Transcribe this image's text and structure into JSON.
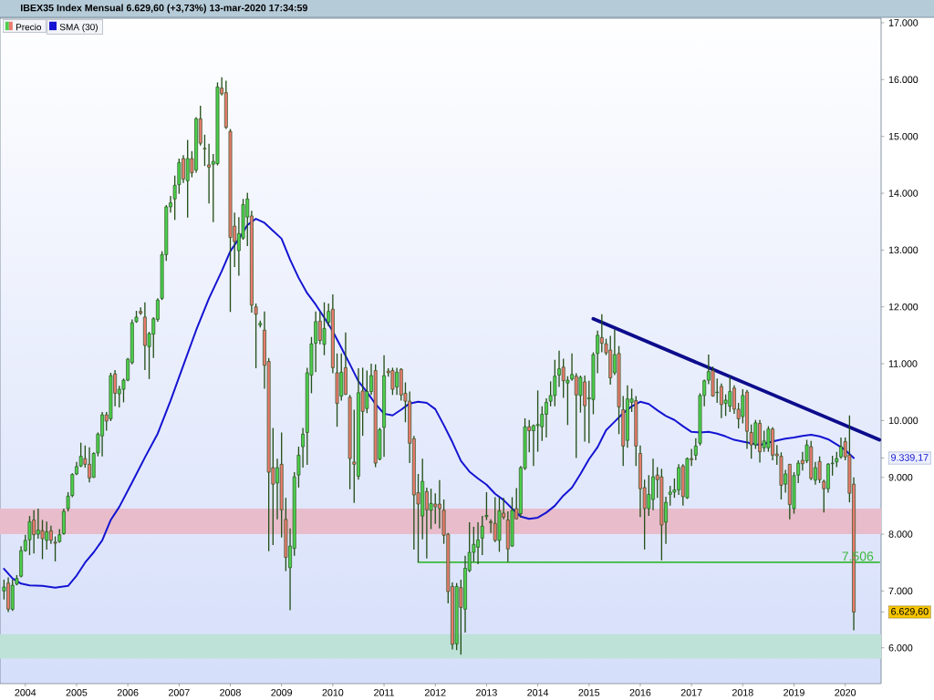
{
  "chart_data": {
    "type": "candlestick",
    "title": "IBEX35 Index Mensual 6.629,60 (+3,73%) 13-mar-2020 17:34:59",
    "xlim": [
      "2003-07-03",
      "2020-09-13"
    ],
    "ylim": [
      5370,
      17080
    ],
    "xticks": [
      "2004",
      "2005",
      "2006",
      "2007",
      "2008",
      "2009",
      "2010",
      "2011",
      "2012",
      "2013",
      "2014",
      "2015",
      "2016",
      "2017",
      "2018",
      "2019",
      "2020"
    ],
    "yticks": [
      {
        "value": 6000,
        "label": "6.000"
      },
      {
        "value": 6629.6,
        "label": "6.629,60"
      },
      {
        "value": 7000,
        "label": "7.000"
      },
      {
        "value": 8000,
        "label": "8.000"
      },
      {
        "value": 9000,
        "label": "9.000"
      },
      {
        "value": 9339.17,
        "label": "9.339,17"
      },
      {
        "value": 10000,
        "label": "10.000"
      },
      {
        "value": 11000,
        "label": "11.000"
      },
      {
        "value": 12000,
        "label": "12.000"
      },
      {
        "value": 13000,
        "label": "13.000"
      },
      {
        "value": 14000,
        "label": "14.000"
      },
      {
        "value": 15000,
        "label": "15.000"
      },
      {
        "value": 16000,
        "label": "16.000"
      },
      {
        "value": 17000,
        "label": "17.000"
      }
    ],
    "legend": "top left",
    "series": [
      {
        "name": "Precio",
        "x": [
          "2003-08",
          "2003-09",
          "2003-10",
          "2003-11",
          "2003-12",
          "2004-01",
          "2004-02",
          "2004-03",
          "2004-04",
          "2004-05",
          "2004-06",
          "2004-07",
          "2004-08",
          "2004-09",
          "2004-10",
          "2004-11",
          "2004-12",
          "2005-01",
          "2005-02",
          "2005-03",
          "2005-04",
          "2005-05",
          "2005-06",
          "2005-07",
          "2005-08",
          "2005-09",
          "2005-10",
          "2005-11",
          "2005-12",
          "2006-01",
          "2006-02",
          "2006-03",
          "2006-04",
          "2006-05",
          "2006-06",
          "2006-07",
          "2006-08",
          "2006-09",
          "2006-10",
          "2006-11",
          "2006-12",
          "2007-01",
          "2007-02",
          "2007-03",
          "2007-04",
          "2007-05",
          "2007-06",
          "2007-07",
          "2007-08",
          "2007-09",
          "2007-10",
          "2007-11",
          "2007-12",
          "2008-01",
          "2008-02",
          "2008-03",
          "2008-04",
          "2008-05",
          "2008-06",
          "2008-07",
          "2008-08",
          "2008-09",
          "2008-10",
          "2008-11",
          "2008-12",
          "2009-01",
          "2009-02",
          "2009-03",
          "2009-04",
          "2009-05",
          "2009-06",
          "2009-07",
          "2009-08",
          "2009-09",
          "2009-10",
          "2009-11",
          "2009-12",
          "2010-01",
          "2010-02",
          "2010-03",
          "2010-04",
          "2010-05",
          "2010-06",
          "2010-07",
          "2010-08",
          "2010-09",
          "2010-10",
          "2010-11",
          "2010-12",
          "2011-01",
          "2011-02",
          "2011-03",
          "2011-04",
          "2011-05",
          "2011-06",
          "2011-07",
          "2011-08",
          "2011-09",
          "2011-10",
          "2011-11",
          "2011-12",
          "2012-01",
          "2012-02",
          "2012-03",
          "2012-04",
          "2012-05",
          "2012-06",
          "2012-07",
          "2012-08",
          "2012-09",
          "2012-10",
          "2012-11",
          "2012-12",
          "2013-01",
          "2013-02",
          "2013-03",
          "2013-04",
          "2013-05",
          "2013-06",
          "2013-07",
          "2013-08",
          "2013-09",
          "2013-10",
          "2013-11",
          "2013-12",
          "2014-01",
          "2014-02",
          "2014-03",
          "2014-04",
          "2014-05",
          "2014-06",
          "2014-07",
          "2014-08",
          "2014-09",
          "2014-10",
          "2014-11",
          "2014-12",
          "2015-01",
          "2015-02",
          "2015-03",
          "2015-04",
          "2015-05",
          "2015-06",
          "2015-07",
          "2015-08",
          "2015-09",
          "2015-10",
          "2015-11",
          "2015-12",
          "2016-01",
          "2016-02",
          "2016-03",
          "2016-04",
          "2016-05",
          "2016-06",
          "2016-07",
          "2016-08",
          "2016-09",
          "2016-10",
          "2016-11",
          "2016-12",
          "2017-01",
          "2017-02",
          "2017-03",
          "2017-04",
          "2017-05",
          "2017-06",
          "2017-07",
          "2017-08",
          "2017-09",
          "2017-10",
          "2017-11",
          "2017-12",
          "2018-01",
          "2018-02",
          "2018-03",
          "2018-04",
          "2018-05",
          "2018-06",
          "2018-07",
          "2018-08",
          "2018-09",
          "2018-10",
          "2018-11",
          "2018-12",
          "2019-01",
          "2019-02",
          "2019-03",
          "2019-04",
          "2019-05",
          "2019-06",
          "2019-07",
          "2019-08",
          "2019-09",
          "2019-10",
          "2019-11",
          "2019-12",
          "2020-01",
          "2020-02",
          "2020-03"
        ],
        "ohlc": [
          [
            7000,
            7200,
            6850,
            7070
          ],
          [
            7140,
            7240,
            6630,
            6680
          ],
          [
            6680,
            7200,
            6650,
            7100
          ],
          [
            7120,
            7280,
            7100,
            7220
          ],
          [
            7260,
            7790,
            7240,
            7710
          ],
          [
            7710,
            7990,
            7690,
            7890
          ],
          [
            7900,
            8320,
            7630,
            8220
          ],
          [
            8250,
            8420,
            7660,
            7990
          ],
          [
            8000,
            8450,
            7920,
            8070
          ],
          [
            8060,
            8250,
            7560,
            7920
          ],
          [
            7890,
            8220,
            7730,
            8040
          ],
          [
            8060,
            8150,
            7830,
            7890
          ],
          [
            7860,
            7960,
            7520,
            7840
          ],
          [
            7870,
            8090,
            7850,
            7990
          ],
          [
            8010,
            8450,
            7990,
            8400
          ],
          [
            8450,
            8740,
            8400,
            8670
          ],
          [
            8680,
            9070,
            8650,
            9050
          ],
          [
            9060,
            9270,
            9040,
            9190
          ],
          [
            9200,
            9610,
            9180,
            9370
          ],
          [
            9330,
            9560,
            9170,
            9230
          ],
          [
            9230,
            9530,
            8910,
            8990
          ],
          [
            9000,
            9440,
            8990,
            9420
          ],
          [
            9430,
            9790,
            9370,
            9760
          ],
          [
            9730,
            10150,
            9370,
            10100
          ],
          [
            10100,
            10150,
            9820,
            9990
          ],
          [
            10030,
            10840,
            9990,
            10790
          ],
          [
            10820,
            10890,
            10250,
            10480
          ],
          [
            10470,
            10610,
            10230,
            10550
          ],
          [
            10550,
            10740,
            10320,
            10710
          ],
          [
            10710,
            11100,
            10690,
            11080
          ],
          [
            11020,
            11780,
            10990,
            11720
          ],
          [
            11740,
            11930,
            11720,
            11820
          ],
          [
            11920,
            11990,
            11860,
            11890
          ],
          [
            11820,
            12080,
            10890,
            11320
          ],
          [
            11300,
            11560,
            10730,
            11530
          ],
          [
            11520,
            11820,
            11100,
            11790
          ],
          [
            11780,
            12150,
            11740,
            12120
          ],
          [
            12150,
            12980,
            12120,
            12920
          ],
          [
            12920,
            13790,
            12810,
            13760
          ],
          [
            13760,
            13950,
            13660,
            13830
          ],
          [
            13900,
            14310,
            13530,
            14140
          ],
          [
            14150,
            14610,
            13990,
            14540
          ],
          [
            14610,
            14670,
            14180,
            14250
          ],
          [
            14220,
            14940,
            13570,
            14610
          ],
          [
            14610,
            14740,
            14280,
            14360
          ],
          [
            14410,
            15340,
            14360,
            15310
          ],
          [
            15310,
            15540,
            14840,
            14880
          ],
          [
            14790,
            15030,
            14480,
            14780
          ],
          [
            14500,
            14870,
            13820,
            14460
          ],
          [
            14510,
            14690,
            13490,
            14560
          ],
          [
            14520,
            15950,
            14490,
            15870
          ],
          [
            15850,
            16040,
            15720,
            15750
          ],
          [
            15770,
            15980,
            15130,
            15160
          ],
          [
            15090,
            15130,
            11910,
            13220
          ],
          [
            13420,
            13660,
            12700,
            13150
          ],
          [
            12990,
            13580,
            12550,
            13290
          ],
          [
            13210,
            13900,
            13180,
            13800
          ],
          [
            13580,
            14010,
            13070,
            13900
          ],
          [
            13600,
            13690,
            11900,
            12030
          ],
          [
            12000,
            12060,
            10920,
            11870
          ],
          [
            11680,
            11760,
            11640,
            11710
          ],
          [
            11590,
            11920,
            10560,
            10970
          ],
          [
            11040,
            11100,
            7700,
            9090
          ],
          [
            9170,
            9870,
            7810,
            8880
          ],
          [
            8900,
            9330,
            8260,
            9170
          ],
          [
            9230,
            9790,
            7940,
            8430
          ],
          [
            8260,
            8640,
            7350,
            7590
          ],
          [
            7410,
            8100,
            6660,
            7790
          ],
          [
            7750,
            9090,
            7620,
            9010
          ],
          [
            9040,
            9540,
            8820,
            9390
          ],
          [
            9540,
            9870,
            9170,
            9760
          ],
          [
            9790,
            10930,
            9220,
            10840
          ],
          [
            10800,
            11470,
            10480,
            11350
          ],
          [
            11360,
            11920,
            10850,
            11740
          ],
          [
            11750,
            11920,
            11340,
            11410
          ],
          [
            11340,
            12080,
            11150,
            11620
          ],
          [
            11730,
            12060,
            11660,
            11920
          ],
          [
            11960,
            12220,
            10830,
            10930
          ],
          [
            10840,
            11180,
            9890,
            10300
          ],
          [
            10430,
            11180,
            10350,
            10850
          ],
          [
            10930,
            11550,
            10450,
            10460
          ],
          [
            10410,
            10450,
            8790,
            9330
          ],
          [
            9270,
            10190,
            8550,
            9230
          ],
          [
            9020,
            10920,
            8960,
            10490
          ],
          [
            10520,
            10930,
            9730,
            10160
          ],
          [
            10210,
            10880,
            10130,
            10510
          ],
          [
            10510,
            11000,
            10450,
            10790
          ],
          [
            10880,
            10990,
            9180,
            9250
          ],
          [
            9320,
            9870,
            9300,
            9840
          ],
          [
            9880,
            11150,
            9360,
            10790
          ],
          [
            10870,
            10920,
            10770,
            10840
          ],
          [
            10880,
            10930,
            10450,
            10550
          ],
          [
            10590,
            10930,
            10450,
            10850
          ],
          [
            10900,
            10920,
            10350,
            10450
          ],
          [
            10480,
            10670,
            9970,
            10340
          ],
          [
            10340,
            10510,
            9250,
            9600
          ],
          [
            9680,
            9730,
            7730,
            8690
          ],
          [
            8730,
            9060,
            7506,
            8530
          ],
          [
            8320,
            9330,
            7910,
            8930
          ],
          [
            8750,
            8820,
            7570,
            8430
          ],
          [
            8420,
            8800,
            8090,
            8540
          ],
          [
            8530,
            8720,
            8180,
            8480
          ],
          [
            8530,
            8950,
            8100,
            8450
          ],
          [
            8420,
            8610,
            7830,
            7980
          ],
          [
            8000,
            8020,
            6780,
            6990
          ],
          [
            7080,
            7150,
            5970,
            6060
          ],
          [
            6070,
            7140,
            5960,
            7080
          ],
          [
            7060,
            7200,
            5880,
            6710
          ],
          [
            6680,
            7620,
            6270,
            7400
          ],
          [
            7360,
            8210,
            7330,
            7680
          ],
          [
            7680,
            8130,
            7510,
            7820
          ],
          [
            7770,
            8210,
            7470,
            7900
          ],
          [
            7930,
            8320,
            7630,
            8140
          ],
          [
            8310,
            8740,
            8250,
            8330
          ],
          [
            8220,
            8260,
            8020,
            8200
          ],
          [
            8190,
            8650,
            7860,
            7890
          ],
          [
            7890,
            8650,
            7690,
            8410
          ],
          [
            8370,
            8640,
            8260,
            8300
          ],
          [
            8250,
            8400,
            7510,
            7740
          ],
          [
            7790,
            8650,
            7780,
            8420
          ],
          [
            8450,
            8810,
            8260,
            8270
          ],
          [
            8360,
            9200,
            8300,
            9170
          ],
          [
            9160,
            10040,
            9130,
            9890
          ],
          [
            9890,
            10010,
            9440,
            9820
          ],
          [
            9820,
            9930,
            9200,
            9910
          ],
          [
            9910,
            10530,
            9450,
            9930
          ],
          [
            9890,
            10250,
            9640,
            10110
          ],
          [
            10110,
            10390,
            9700,
            10320
          ],
          [
            10340,
            10690,
            10250,
            10440
          ],
          [
            10440,
            11070,
            10250,
            10780
          ],
          [
            10800,
            11230,
            10590,
            10910
          ],
          [
            10940,
            11090,
            10400,
            10700
          ],
          [
            10660,
            10780,
            9920,
            10710
          ],
          [
            10730,
            11180,
            10700,
            10810
          ],
          [
            10780,
            10830,
            9340,
            10450
          ],
          [
            10440,
            10790,
            10140,
            10760
          ],
          [
            10680,
            10790,
            9630,
            10260
          ],
          [
            10380,
            10700,
            9600,
            10400
          ],
          [
            10370,
            11200,
            10110,
            11160
          ],
          [
            11180,
            11580,
            10830,
            11500
          ],
          [
            11460,
            11870,
            11200,
            11360
          ],
          [
            11350,
            11440,
            11150,
            11190
          ],
          [
            11240,
            11490,
            10630,
            10750
          ],
          [
            10840,
            11600,
            10800,
            11160
          ],
          [
            11180,
            11310,
            9760,
            10240
          ],
          [
            10190,
            10430,
            9200,
            9550
          ],
          [
            9650,
            10620,
            9520,
            10380
          ],
          [
            10320,
            10560,
            10150,
            10380
          ],
          [
            10350,
            10430,
            9200,
            9550
          ],
          [
            9420,
            9560,
            8300,
            8800
          ],
          [
            8820,
            8960,
            7730,
            8450
          ],
          [
            8450,
            9040,
            8320,
            8700
          ],
          [
            8610,
            9330,
            8420,
            9010
          ],
          [
            9040,
            9180,
            8640,
            8960
          ],
          [
            9010,
            9150,
            7540,
            8160
          ],
          [
            8210,
            8660,
            7830,
            8560
          ],
          [
            8700,
            8850,
            8500,
            8740
          ],
          [
            8740,
            8980,
            8640,
            8780
          ],
          [
            8780,
            9230,
            8690,
            9170
          ],
          [
            9200,
            9230,
            8500,
            8660
          ],
          [
            8640,
            9350,
            8620,
            9330
          ],
          [
            9330,
            9500,
            9200,
            9310
          ],
          [
            9390,
            9690,
            9300,
            9550
          ],
          [
            9600,
            10480,
            9560,
            10440
          ],
          [
            10440,
            10720,
            10250,
            10700
          ],
          [
            10710,
            11160,
            10640,
            10860
          ],
          [
            10880,
            10950,
            10420,
            10430
          ],
          [
            10490,
            10740,
            10310,
            10500
          ],
          [
            10600,
            10650,
            10040,
            10280
          ],
          [
            10300,
            10460,
            10080,
            10360
          ],
          [
            10250,
            10770,
            10150,
            10510
          ],
          [
            10570,
            10620,
            10120,
            10200
          ],
          [
            10200,
            10310,
            9860,
            10030
          ],
          [
            10070,
            10550,
            9950,
            10440
          ],
          [
            10500,
            10540,
            9500,
            9810
          ],
          [
            9790,
            9930,
            9330,
            9570
          ],
          [
            9570,
            10010,
            9500,
            9960
          ],
          [
            9950,
            10010,
            9260,
            9450
          ],
          [
            9520,
            9820,
            9450,
            9640
          ],
          [
            9520,
            9900,
            9450,
            9850
          ],
          [
            9850,
            9880,
            9300,
            9390
          ],
          [
            9410,
            9570,
            9220,
            9380
          ],
          [
            9370,
            9440,
            8610,
            8860
          ],
          [
            8880,
            9130,
            8730,
            9060
          ],
          [
            9230,
            9230,
            8260,
            8520
          ],
          [
            8450,
            9090,
            8360,
            9030
          ],
          [
            9040,
            9300,
            8900,
            9250
          ],
          [
            9300,
            9450,
            9120,
            9240
          ],
          [
            9290,
            9660,
            9250,
            9570
          ],
          [
            9540,
            9640,
            8950,
            8980
          ],
          [
            8950,
            9270,
            8870,
            9170
          ],
          [
            9280,
            9370,
            8900,
            8960
          ],
          [
            8930,
            8960,
            8380,
            8800
          ],
          [
            8800,
            9250,
            8730,
            9230
          ],
          [
            9240,
            9380,
            9030,
            9250
          ],
          [
            9270,
            9450,
            9180,
            9330
          ],
          [
            9360,
            9700,
            9330,
            9540
          ],
          [
            9630,
            9700,
            9300,
            9360
          ],
          [
            9390,
            10090,
            8560,
            8720
          ],
          [
            8880,
            9000,
            6310,
            6629.6
          ]
        ],
        "colors": [
          "#4dcf4d",
          "#e97a6f",
          "#4dcf4d",
          "#4dcf4d",
          "#4dcf4d",
          "#4dcf4d",
          "#4dcf4d",
          "#e97a6f",
          "#4dcf4d",
          "#e97a6f",
          "#4dcf4d",
          "#e97a6f",
          "#e97a6f",
          "#4dcf4d",
          "#4dcf4d",
          "#4dcf4d",
          "#4dcf4d",
          "#4dcf4d",
          "#4dcf4d",
          "#e97a6f",
          "#e97a6f",
          "#4dcf4d",
          "#4dcf4d",
          "#4dcf4d",
          "#e97a6f",
          "#4dcf4d",
          "#e97a6f",
          "#4dcf4d",
          "#4dcf4d",
          "#4dcf4d",
          "#4dcf4d",
          "#4dcf4d",
          "#e97a6f",
          "#e97a6f",
          "#4dcf4d",
          "#4dcf4d",
          "#4dcf4d",
          "#4dcf4d",
          "#4dcf4d",
          "#4dcf4d",
          "#4dcf4d",
          "#4dcf4d",
          "#e97a6f",
          "#4dcf4d",
          "#e97a6f",
          "#4dcf4d",
          "#e97a6f",
          "#e97a6f",
          "#e97a6f",
          "#4dcf4d",
          "#4dcf4d",
          "#e97a6f",
          "#e97a6f",
          "#e97a6f",
          "#e97a6f",
          "#4dcf4d",
          "#4dcf4d",
          "#4dcf4d",
          "#e97a6f",
          "#e97a6f",
          "#4dcf4d",
          "#e97a6f",
          "#e97a6f",
          "#e97a6f",
          "#4dcf4d",
          "#e97a6f",
          "#e97a6f",
          "#4dcf4d",
          "#4dcf4d",
          "#4dcf4d",
          "#4dcf4d",
          "#4dcf4d",
          "#4dcf4d",
          "#4dcf4d",
          "#e97a6f",
          "#4dcf4d",
          "#4dcf4d",
          "#e97a6f",
          "#e97a6f",
          "#4dcf4d",
          "#e97a6f",
          "#e97a6f",
          "#e97a6f",
          "#4dcf4d",
          "#e97a6f",
          "#4dcf4d",
          "#4dcf4d",
          "#e97a6f",
          "#4dcf4d",
          "#4dcf4d",
          "#e97a6f",
          "#e97a6f",
          "#4dcf4d",
          "#e97a6f",
          "#e97a6f",
          "#e97a6f",
          "#e97a6f",
          "#e97a6f",
          "#4dcf4d",
          "#e97a6f",
          "#4dcf4d",
          "#e97a6f",
          "#e97a6f",
          "#e97a6f",
          "#e97a6f",
          "#e97a6f",
          "#4dcf4d",
          "#e97a6f",
          "#4dcf4d",
          "#4dcf4d",
          "#4dcf4d",
          "#4dcf4d",
          "#4dcf4d",
          "#4dcf4d",
          "#e97a6f",
          "#e97a6f",
          "#4dcf4d",
          "#e97a6f",
          "#e97a6f",
          "#4dcf4d",
          "#e97a6f",
          "#4dcf4d",
          "#4dcf4d",
          "#e97a6f",
          "#4dcf4d",
          "#4dcf4d",
          "#4dcf4d",
          "#4dcf4d",
          "#4dcf4d",
          "#4dcf4d",
          "#4dcf4d",
          "#e97a6f",
          "#4dcf4d",
          "#4dcf4d",
          "#e97a6f",
          "#4dcf4d",
          "#e97a6f",
          "#4dcf4d",
          "#4dcf4d",
          "#4dcf4d",
          "#e97a6f",
          "#e97a6f",
          "#e97a6f",
          "#4dcf4d",
          "#e97a6f",
          "#e97a6f",
          "#4dcf4d",
          "#4dcf4d",
          "#e97a6f",
          "#e97a6f",
          "#e97a6f",
          "#4dcf4d",
          "#4dcf4d",
          "#e97a6f",
          "#e97a6f",
          "#4dcf4d",
          "#4dcf4d",
          "#4dcf4d",
          "#4dcf4d",
          "#e97a6f",
          "#4dcf4d",
          "#e97a6f",
          "#4dcf4d",
          "#4dcf4d",
          "#4dcf4d",
          "#4dcf4d",
          "#e97a6f",
          "#4dcf4d",
          "#e97a6f",
          "#4dcf4d",
          "#4dcf4d",
          "#e97a6f",
          "#e97a6f",
          "#4dcf4d",
          "#e97a6f",
          "#e97a6f",
          "#4dcf4d",
          "#e97a6f",
          "#4dcf4d",
          "#4dcf4d",
          "#e97a6f",
          "#e97a6f",
          "#e97a6f",
          "#4dcf4d",
          "#e97a6f",
          "#4dcf4d",
          "#4dcf4d",
          "#e97a6f",
          "#4dcf4d",
          "#e97a6f",
          "#4dcf4d",
          "#e97a6f",
          "#e97a6f",
          "#4dcf4d",
          "#4dcf4d",
          "#4dcf4d",
          "#4dcf4d",
          "#e97a6f",
          "#e97a6f",
          "#e97a6f"
        ]
      },
      {
        "name": "SMA (30)",
        "type": "line",
        "color": "#1414d2",
        "x": [
          "2003-08",
          "2003-10",
          "2003-12",
          "2004-02",
          "2004-05",
          "2004-08",
          "2004-11",
          "2005-01",
          "2005-03",
          "2005-05",
          "2005-07",
          "2005-09",
          "2005-11",
          "2006-02",
          "2006-05",
          "2006-08",
          "2006-11",
          "2007-02",
          "2007-05",
          "2007-08",
          "2007-11",
          "2008-01",
          "2008-03-16",
          "2008-05",
          "2008-07",
          "2008-09",
          "2008-11",
          "2009-01",
          "2009-03",
          "2009-05",
          "2009-07",
          "2009-09",
          "2009-11",
          "2010-01",
          "2010-03",
          "2010-05",
          "2010-07",
          "2010-09",
          "2010-11",
          "2011-01",
          "2011-03",
          "2011-05",
          "2011-07",
          "2011-09",
          "2011-11",
          "2012-01",
          "2012-03",
          "2012-05",
          "2012-07",
          "2012-09",
          "2012-11",
          "2013-01",
          "2013-03",
          "2013-05",
          "2013-07",
          "2013-09",
          "2013-11",
          "2014-01",
          "2014-03",
          "2014-05",
          "2014-07",
          "2014-09",
          "2014-11",
          "2015-01",
          "2015-03",
          "2015-05",
          "2015-07",
          "2015-09",
          "2015-11",
          "2016-01",
          "2016-03",
          "2016-05",
          "2016-07",
          "2016-09",
          "2016-11",
          "2017-01",
          "2017-03",
          "2017-05",
          "2017-07",
          "2017-09",
          "2017-11",
          "2018-01",
          "2018-03",
          "2018-05",
          "2018-07-16",
          "2018-09",
          "2018-11",
          "2019-01",
          "2019-03",
          "2019-05",
          "2019-07",
          "2019-09",
          "2019-11",
          "2020-01",
          "2020-03"
        ],
        "values": [
          7390,
          7220,
          7130,
          7100,
          7090,
          7060,
          7090,
          7270,
          7500,
          7680,
          7890,
          8250,
          8480,
          8910,
          9350,
          9770,
          10350,
          10970,
          11590,
          12150,
          12630,
          12980,
          13250,
          13440,
          13550,
          13480,
          13340,
          13200,
          12830,
          12510,
          12240,
          12040,
          11810,
          11570,
          11280,
          10990,
          10690,
          10500,
          10290,
          10120,
          10090,
          10190,
          10300,
          10330,
          10310,
          10200,
          9920,
          9620,
          9290,
          9100,
          8980,
          8870,
          8710,
          8600,
          8450,
          8310,
          8270,
          8290,
          8380,
          8500,
          8680,
          8820,
          9060,
          9320,
          9530,
          9830,
          9980,
          10130,
          10250,
          10330,
          10290,
          10180,
          10080,
          10010,
          9900,
          9800,
          9790,
          9800,
          9770,
          9720,
          9660,
          9630,
          9600,
          9570,
          9620,
          9650,
          9680,
          9700,
          9730,
          9750,
          9720,
          9670,
          9580,
          9480,
          9339.17
        ]
      },
      {
        "type": "line",
        "color": "#0c0c8c",
        "x": [
          "2015-02",
          "2020-09"
        ],
        "values": [
          11790,
          9660
        ]
      },
      {
        "type": "line",
        "color": "#3bb83b",
        "x": [
          "2011-09",
          "2020-09"
        ],
        "values": [
          7506,
          7506
        ]
      }
    ],
    "bands": [
      {
        "axis": "y",
        "from": 8000,
        "to": 8450,
        "color": "#e8bccb"
      },
      {
        "axis": "y",
        "from": 5810,
        "to": 6240,
        "color": "#bee1d8"
      }
    ],
    "annotations": [
      {
        "text": "7.506",
        "x": "2020-08",
        "y": 7506
      }
    ]
  }
}
